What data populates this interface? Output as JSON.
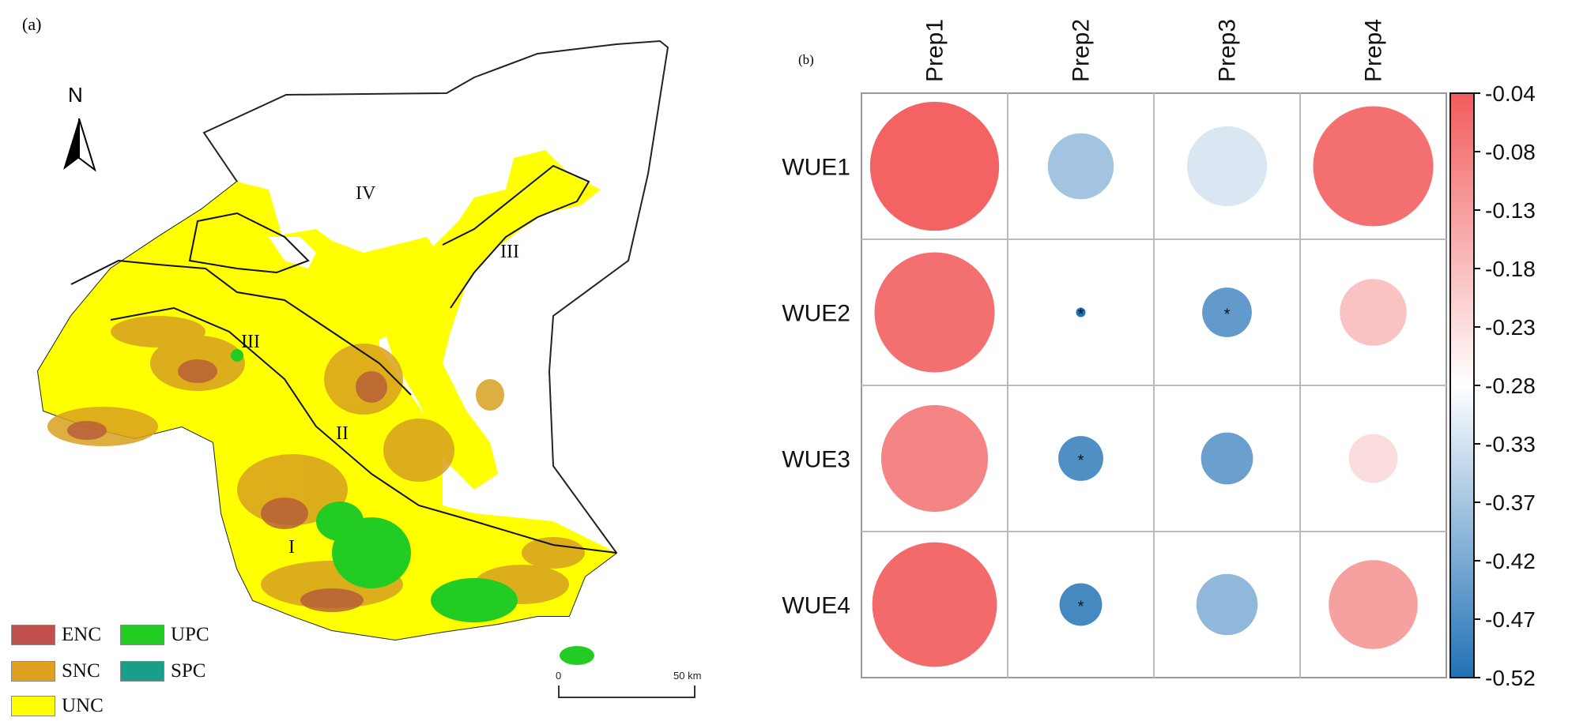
{
  "panel_a": {
    "label": "(a)",
    "north_label": "N",
    "regions": [
      "IV",
      "III",
      "III",
      "II",
      "I"
    ],
    "legend": [
      {
        "name": "ENC",
        "color": "#c0504d"
      },
      {
        "name": "UPC",
        "color": "#22cc22"
      },
      {
        "name": "SNC",
        "color": "#e0a020"
      },
      {
        "name": "SPC",
        "color": "#1a9e8a"
      },
      {
        "name": "UNC",
        "color": "#ffff00"
      }
    ],
    "scale": {
      "start": "0",
      "end": "50 km"
    }
  },
  "panel_b": {
    "label": "(b)"
  },
  "chart_data": {
    "type": "heatmap",
    "columns": [
      "Prep1",
      "Prep2",
      "Prep3",
      "Prep4"
    ],
    "rows": [
      "WUE1",
      "WUE2",
      "WUE3",
      "WUE4"
    ],
    "values": [
      [
        -0.05,
        -0.38,
        -0.32,
        -0.07
      ],
      [
        -0.07,
        -0.52,
        -0.45,
        -0.19
      ],
      [
        -0.1,
        -0.47,
        -0.44,
        -0.23
      ],
      [
        -0.06,
        -0.48,
        -0.4,
        -0.14
      ]
    ],
    "significant": [
      [
        false,
        false,
        false,
        false
      ],
      [
        false,
        true,
        true,
        false
      ],
      [
        false,
        true,
        false,
        false
      ],
      [
        false,
        true,
        false,
        false
      ]
    ],
    "colorbar_ticks": [
      "-0.04",
      "-0.08",
      "-0.13",
      "-0.18",
      "-0.23",
      "-0.28",
      "-0.33",
      "-0.37",
      "-0.42",
      "-0.47",
      "-0.52"
    ],
    "vmin": -0.52,
    "vmax": -0.04,
    "color_low": "#2171b5",
    "color_mid": "#ffffff",
    "color_high": "#f25c5c",
    "significance_marker": "*"
  }
}
